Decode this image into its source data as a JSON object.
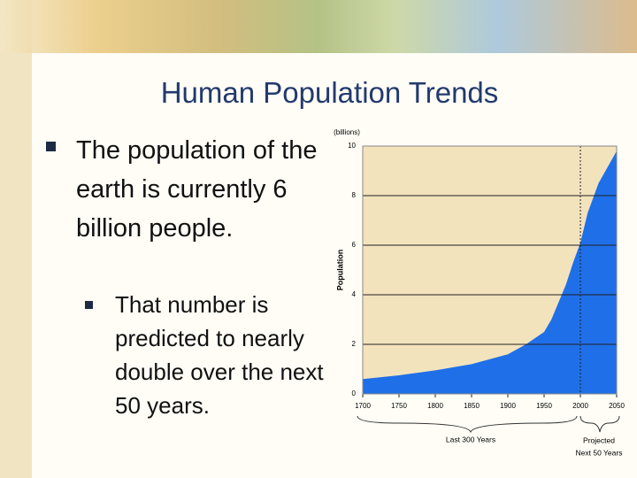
{
  "slide": {
    "title": "Human Population Trends",
    "bullet": "The population of the earth is currently 6 billion people.",
    "sub_bullet": "That number is predicted to nearly double over the next 50 years."
  },
  "chart_data": {
    "type": "area",
    "unit_label": "(billions)",
    "y_label": "Population",
    "x": [
      1700,
      1750,
      1800,
      1850,
      1900,
      1925,
      1950,
      1960,
      1970,
      1980,
      1990,
      2000,
      2010,
      2025,
      2050
    ],
    "series": [
      {
        "name": "Population",
        "color": "#1f6fe8",
        "values": [
          0.6,
          0.75,
          0.95,
          1.2,
          1.6,
          2.0,
          2.5,
          3.0,
          3.7,
          4.4,
          5.3,
          6.1,
          7.3,
          8.5,
          9.8
        ]
      }
    ],
    "xlim": [
      1700,
      2050
    ],
    "xticks": [
      1700,
      1750,
      1800,
      1850,
      1900,
      1950,
      2000,
      2050
    ],
    "ylim": [
      0,
      10
    ],
    "yticks": [
      0,
      2,
      4,
      6,
      8,
      10
    ],
    "divider": 2000,
    "background": "#f3e3bd",
    "grid": true,
    "annotations": [
      "Last 300 Years",
      "Projected",
      "Next 50 Years"
    ]
  }
}
